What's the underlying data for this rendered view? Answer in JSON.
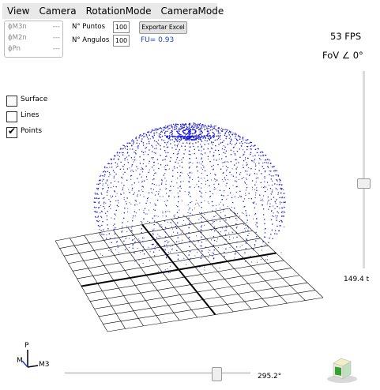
{
  "menu": [
    "View",
    "Camera",
    "RotationMode",
    "CameraMode"
  ],
  "phi_panel": [
    {
      "label": "ϕM3n",
      "value": "---"
    },
    {
      "label": "ϕM2n",
      "value": "---"
    },
    {
      "label": "ϕPn",
      "value": "---"
    }
  ],
  "controls": {
    "puntos_label": "N° Puntos",
    "puntos_value": "100",
    "angulos_label": "N° Angulos",
    "angulos_value": "100",
    "export_button": "Exportar Excel",
    "fu_text": "FU= 0.93"
  },
  "stats": {
    "fps": "53 FPS",
    "fov": "FoV ∠ 0°"
  },
  "checkboxes": [
    {
      "label": "Surface",
      "checked": false
    },
    {
      "label": "Lines",
      "checked": false
    },
    {
      "label": "Points",
      "checked": true
    }
  ],
  "vertical_slider": {
    "value_text": "149.4 t",
    "level": 0.55
  },
  "horizontal_slider": {
    "value_text": "295.2°",
    "level": 0.82
  },
  "axes_gizmo": {
    "top": "P",
    "left": "M",
    "right": "M3",
    "colors": [
      "#000000",
      "#1f3fd0",
      "#000000"
    ]
  },
  "colors": {
    "points": "#1a1ad0",
    "grid": "#000000",
    "menubar": "#e9e9e9",
    "fu": "#1d3fd6"
  },
  "icons": {
    "gizmo": "axes-gizmo-icon",
    "cube": "view-cube-icon"
  }
}
